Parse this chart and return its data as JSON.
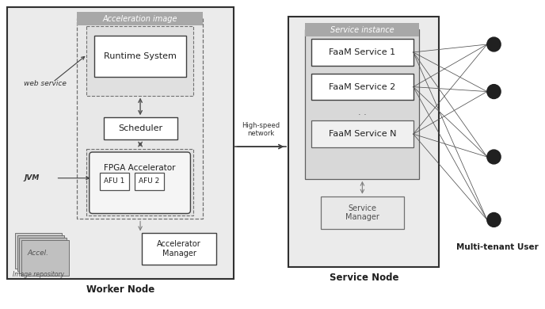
{
  "fig_width": 6.88,
  "fig_height": 3.9,
  "bg_color": "#ffffff",
  "worker_node_label": "Worker Node",
  "service_node_label": "Service Node",
  "multi_tenant_label": "Multi-tenant User",
  "high_speed_label": "High-speed\nnetwork",
  "accel_image_label": "Acceleration image",
  "service_instance_label": "Service instance",
  "runtime_system_label": "Runtime System",
  "scheduler_label": "Scheduler",
  "fpga_label": "FPGA Accelerator",
  "afu1_label": "AFU 1",
  "afu2_label": "AFU 2",
  "accel_manager_label": "Accelerator\nManager",
  "accel_repo_label": "Accel.",
  "accel_repo_sub": "Image repository",
  "web_service_label": "web service",
  "jvm_label": "JVM",
  "faam1_label": "FaaM Service 1",
  "faam2_label": "FaaM Service 2",
  "faamN_label": "FaaM Service N",
  "service_manager_label": "Service\nManager",
  "dots_label": ".",
  "panel_outer_fill": "#ebebeb",
  "panel_outer_edge": "#303030",
  "accel_header_fill": "#a8a8a8",
  "dashed_fill": "#e2e2e2",
  "service_inst_fill": "#d8d8d8",
  "white_box_fill": "#ffffff",
  "box_edge": "#404040",
  "dashed_edge": "#707070",
  "text_color": "#202020",
  "arrow_color": "#404040",
  "line_color": "#505050"
}
